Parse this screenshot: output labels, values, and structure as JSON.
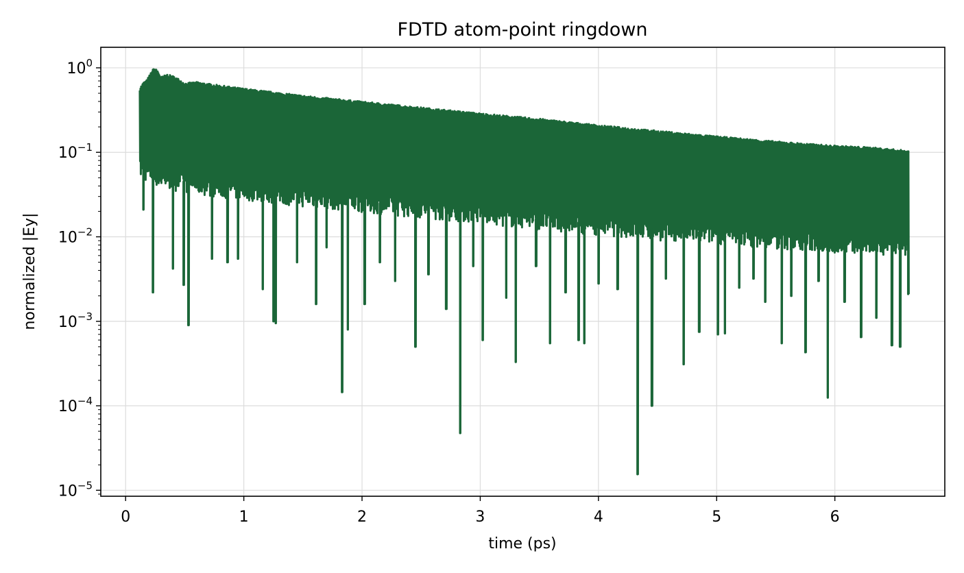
{
  "chart_data": {
    "type": "line",
    "title": "FDTD atom-point ringdown",
    "xlabel": "time (ps)",
    "ylabel": "normalized |Ey|",
    "xlim": [
      -0.21,
      6.93
    ],
    "ylim": [
      8.5e-06,
      1.75
    ],
    "yscale": "log",
    "grid": true,
    "legend": "none",
    "line_color": "#1b6638",
    "x_ticks": [
      0,
      1,
      2,
      3,
      4,
      5,
      6
    ],
    "x_tick_labels": [
      "0",
      "1",
      "2",
      "3",
      "4",
      "5",
      "6"
    ],
    "y_ticks": [
      1e-05,
      0.0001,
      0.001,
      0.01,
      0.1,
      1
    ],
    "y_tick_labels": [
      {
        "base": "10",
        "exp": "−5"
      },
      {
        "base": "10",
        "exp": "−4"
      },
      {
        "base": "10",
        "exp": "−3"
      },
      {
        "base": "10",
        "exp": "−2"
      },
      {
        "base": "10",
        "exp": "−1"
      },
      {
        "base": "10",
        "exp": "0"
      }
    ],
    "series": [
      {
        "envelope_max": {
          "x": [
            0.12,
            0.15,
            0.18,
            0.21,
            0.24,
            0.27,
            0.3,
            0.35,
            0.4,
            0.45,
            0.5,
            0.6,
            0.7,
            0.8,
            1.0,
            1.5,
            2.0,
            2.5,
            3.0,
            3.5,
            4.0,
            4.5,
            5.0,
            5.5,
            6.0,
            6.3,
            6.62
          ],
          "y": [
            0.58,
            0.67,
            0.72,
            0.86,
            1.0,
            0.93,
            0.78,
            0.84,
            0.8,
            0.74,
            0.66,
            0.68,
            0.65,
            0.62,
            0.57,
            0.47,
            0.4,
            0.34,
            0.29,
            0.25,
            0.21,
            0.18,
            0.155,
            0.135,
            0.12,
            0.115,
            0.105
          ]
        },
        "envelope_min": {
          "x": [
            0.12,
            0.3,
            0.6,
            1.0,
            1.5,
            2.0,
            2.5,
            3.0,
            3.5,
            4.0,
            4.5,
            5.0,
            5.5,
            6.0,
            6.62
          ],
          "y": [
            0.065,
            0.05,
            0.042,
            0.036,
            0.03,
            0.026,
            0.022,
            0.019,
            0.016,
            0.014,
            0.012,
            0.011,
            0.0095,
            0.0085,
            0.008
          ]
        },
        "dips": {
          "x": [
            0.15,
            0.23,
            0.4,
            0.49,
            0.53,
            0.73,
            0.86,
            0.95,
            1.16,
            1.25,
            1.27,
            1.45,
            1.61,
            1.7,
            1.83,
            1.88,
            2.02,
            2.15,
            2.28,
            2.45,
            2.56,
            2.71,
            2.83,
            2.94,
            3.02,
            3.22,
            3.3,
            3.47,
            3.59,
            3.72,
            3.83,
            3.88,
            4.0,
            4.16,
            4.33,
            4.45,
            4.57,
            4.72,
            4.85,
            5.01,
            5.07,
            5.19,
            5.31,
            5.41,
            5.55,
            5.63,
            5.75,
            5.86,
            5.94,
            6.08,
            6.22,
            6.35,
            6.48,
            6.55,
            6.62
          ],
          "y": [
            0.021,
            0.0022,
            0.0042,
            0.0027,
            0.0009,
            0.0055,
            0.005,
            0.0055,
            0.0024,
            0.001,
            0.00095,
            0.005,
            0.0016,
            0.0075,
            0.000145,
            0.0008,
            0.0016,
            0.005,
            0.003,
            0.0005,
            0.0036,
            0.0014,
            4.75e-05,
            0.0045,
            0.0006,
            0.0019,
            0.00033,
            0.0045,
            0.00055,
            0.0022,
            0.0006,
            0.00055,
            0.0028,
            0.0024,
            1.55e-05,
            0.0001,
            0.0032,
            0.00031,
            0.00075,
            0.0007,
            0.00072,
            0.0025,
            0.0032,
            0.0017,
            0.00055,
            0.002,
            0.00043,
            0.003,
            0.000125,
            0.0017,
            0.00065,
            0.0011,
            0.00052,
            0.0005,
            0.0021
          ]
        }
      }
    ]
  }
}
